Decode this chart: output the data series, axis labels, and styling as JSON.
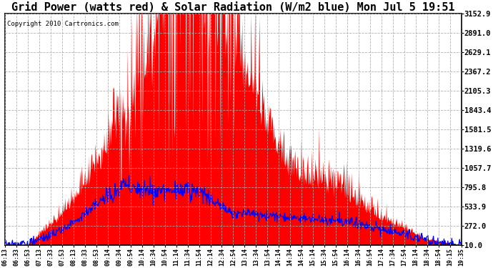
{
  "title": "Grid Power (watts red) & Solar Radiation (W/m2 blue) Mon Jul 5 19:51",
  "copyright_text": "Copyright 2010 Cartronics.com",
  "yticks": [
    10.0,
    272.0,
    533.9,
    795.8,
    1057.7,
    1319.6,
    1581.5,
    1843.4,
    2105.3,
    2367.2,
    2629.1,
    2891.0,
    3152.9
  ],
  "ylim": [
    10.0,
    3152.9
  ],
  "bg_color": "#ffffff",
  "plot_bg_color": "#ffffff",
  "grid_color": "#aaaaaa",
  "red_color": "#ff0000",
  "blue_color": "#0000ff",
  "title_fontsize": 11,
  "xtick_labels": [
    "06:13",
    "06:33",
    "06:53",
    "07:13",
    "07:33",
    "07:53",
    "08:13",
    "08:33",
    "08:53",
    "09:14",
    "09:34",
    "09:54",
    "10:14",
    "10:34",
    "10:54",
    "11:14",
    "11:34",
    "11:54",
    "12:14",
    "12:34",
    "12:54",
    "13:14",
    "13:34",
    "13:54",
    "14:14",
    "14:34",
    "14:54",
    "15:14",
    "15:34",
    "15:54",
    "16:14",
    "16:34",
    "16:54",
    "17:14",
    "17:34",
    "17:54",
    "18:14",
    "18:34",
    "18:54",
    "19:15",
    "19:35"
  ]
}
